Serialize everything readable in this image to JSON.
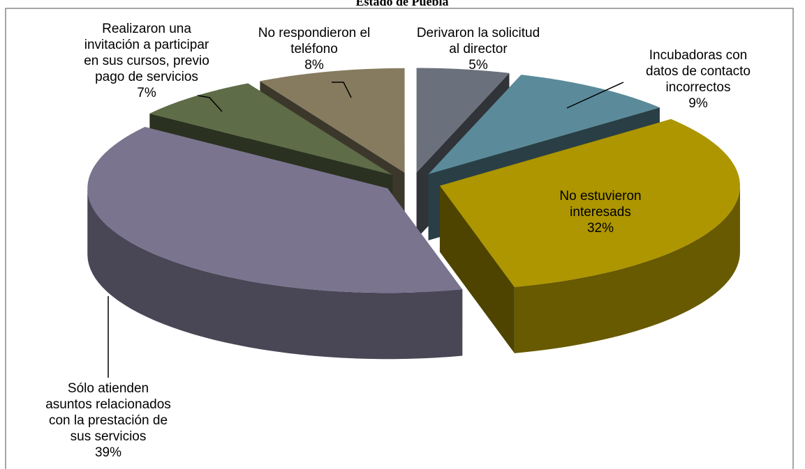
{
  "chart_data": {
    "type": "pie",
    "title": "Estado de Puebla",
    "categories": [
      [
        "Derivaron la solicitud",
        "al director"
      ],
      [
        "Incubadoras con",
        "datos de contacto",
        "incorrectos"
      ],
      [
        "No estuvieron",
        "interesads"
      ],
      [
        "Sólo atienden",
        "asuntos relacionados",
        "con la prestación de",
        "sus servicios"
      ],
      [
        "Realizaron una",
        "invitación a participar",
        "en sus cursos, previo",
        "pago de servicios"
      ],
      [
        "No respondieron el",
        "teléfono"
      ]
    ],
    "values": [
      5,
      9,
      32,
      39,
      7,
      8
    ],
    "value_labels": [
      "5%",
      "9%",
      "32%",
      "39%",
      "7%",
      "8%"
    ],
    "colors": [
      "#6b717c",
      "#5b8b9a",
      "#ad9600",
      "#7a748f",
      "#5e6c48",
      "#867b5f"
    ],
    "exploded": true,
    "three_d": true
  }
}
